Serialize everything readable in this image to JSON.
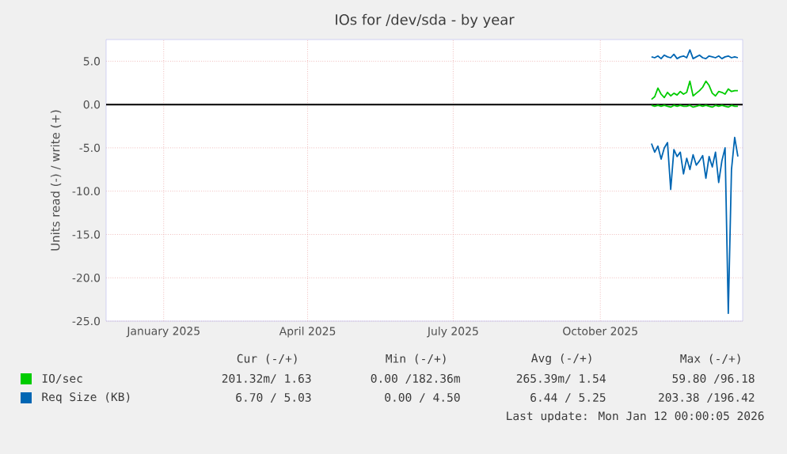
{
  "chart_data": {
    "type": "line",
    "title": "IOs for /dev/sda - by year",
    "ylabel": "Units read (-) / write (+)",
    "xlim": [
      "2024-12-10",
      "2026-01-12"
    ],
    "xticks": [
      {
        "value": "2025-01-15",
        "label": "January 2025"
      },
      {
        "value": "2025-04-15",
        "label": "April 2025"
      },
      {
        "value": "2025-07-15",
        "label": "July 2025"
      },
      {
        "value": "2025-10-15",
        "label": "October 2025"
      }
    ],
    "ylim": [
      -25,
      7.5
    ],
    "yticks": [
      {
        "value": 5,
        "label": "5.0"
      },
      {
        "value": 0,
        "label": "0.0"
      },
      {
        "value": -5,
        "label": "-5.0"
      },
      {
        "value": -10,
        "label": "-10.0"
      },
      {
        "value": -15,
        "label": "-15.0"
      },
      {
        "value": -20,
        "label": "-20.0"
      },
      {
        "value": -25,
        "label": "-25.0"
      }
    ],
    "x": [
      "2025-11-16",
      "2025-11-18",
      "2025-11-20",
      "2025-11-22",
      "2025-11-24",
      "2025-11-26",
      "2025-11-28",
      "2025-11-30",
      "2025-12-02",
      "2025-12-04",
      "2025-12-06",
      "2025-12-08",
      "2025-12-10",
      "2025-12-12",
      "2025-12-14",
      "2025-12-16",
      "2025-12-18",
      "2025-12-20",
      "2025-12-22",
      "2025-12-24",
      "2025-12-26",
      "2025-12-28",
      "2025-12-30",
      "2026-01-01",
      "2026-01-03",
      "2026-01-05",
      "2026-01-07",
      "2026-01-09"
    ],
    "series": [
      {
        "name": "IO/sec",
        "color": "#00cc00",
        "values": [
          0.6,
          0.9,
          1.9,
          1.2,
          0.8,
          1.4,
          1.0,
          1.3,
          1.1,
          1.5,
          1.2,
          1.4,
          2.7,
          1.0,
          1.3,
          1.6,
          2.0,
          2.7,
          2.2,
          1.3,
          1.0,
          1.5,
          1.4,
          1.2,
          1.8,
          1.5,
          1.6,
          1.6
        ]
      },
      {
        "color": "#00cc00",
        "values": [
          -0.1,
          -0.2,
          -0.1,
          -0.2,
          -0.1,
          -0.2,
          -0.3,
          -0.1,
          -0.2,
          -0.1,
          -0.2,
          -0.2,
          -0.1,
          -0.3,
          -0.2,
          -0.1,
          -0.2,
          -0.1,
          -0.2,
          -0.3,
          -0.1,
          -0.2,
          -0.1,
          -0.2,
          -0.3,
          -0.1,
          -0.2,
          -0.2
        ]
      },
      {
        "name": "Req Size (KB)",
        "color": "#0066b3",
        "values": [
          5.5,
          5.4,
          5.6,
          5.3,
          5.7,
          5.5,
          5.4,
          5.8,
          5.3,
          5.5,
          5.6,
          5.4,
          6.3,
          5.3,
          5.5,
          5.7,
          5.4,
          5.3,
          5.6,
          5.5,
          5.4,
          5.6,
          5.3,
          5.5,
          5.6,
          5.4,
          5.5,
          5.4
        ]
      },
      {
        "color": "#0066b3",
        "values": [
          -4.5,
          -5.5,
          -4.8,
          -6.3,
          -5.0,
          -4.4,
          -9.8,
          -5.2,
          -6.0,
          -5.5,
          -8.0,
          -6.2,
          -7.5,
          -5.8,
          -7.0,
          -6.5,
          -5.9,
          -8.5,
          -6.0,
          -7.2,
          -5.5,
          -9.0,
          -6.5,
          -5.0,
          -24.1,
          -7.5,
          -3.8,
          -6.0
        ]
      }
    ],
    "ref_lines": [
      {
        "axis": "y",
        "value": 0,
        "color": "#000000"
      }
    ],
    "annotations": [
      "Cur (-/+)",
      "Min (-/+)",
      "Avg (-/+)",
      "Max (-/+)",
      "201.32m/ 1.63",
      "0.00 /182.36m",
      "265.39m/ 1.54",
      "59.80 /96.18",
      "6.70 / 5.03",
      "0.00 / 4.50",
      "6.44 / 5.25",
      "203.38 /196.42",
      "Last update: Mon Jan 12 00:00:05 2026"
    ],
    "grid": true,
    "legend": "bottom",
    "marker": "none",
    "line_style": "solid"
  }
}
